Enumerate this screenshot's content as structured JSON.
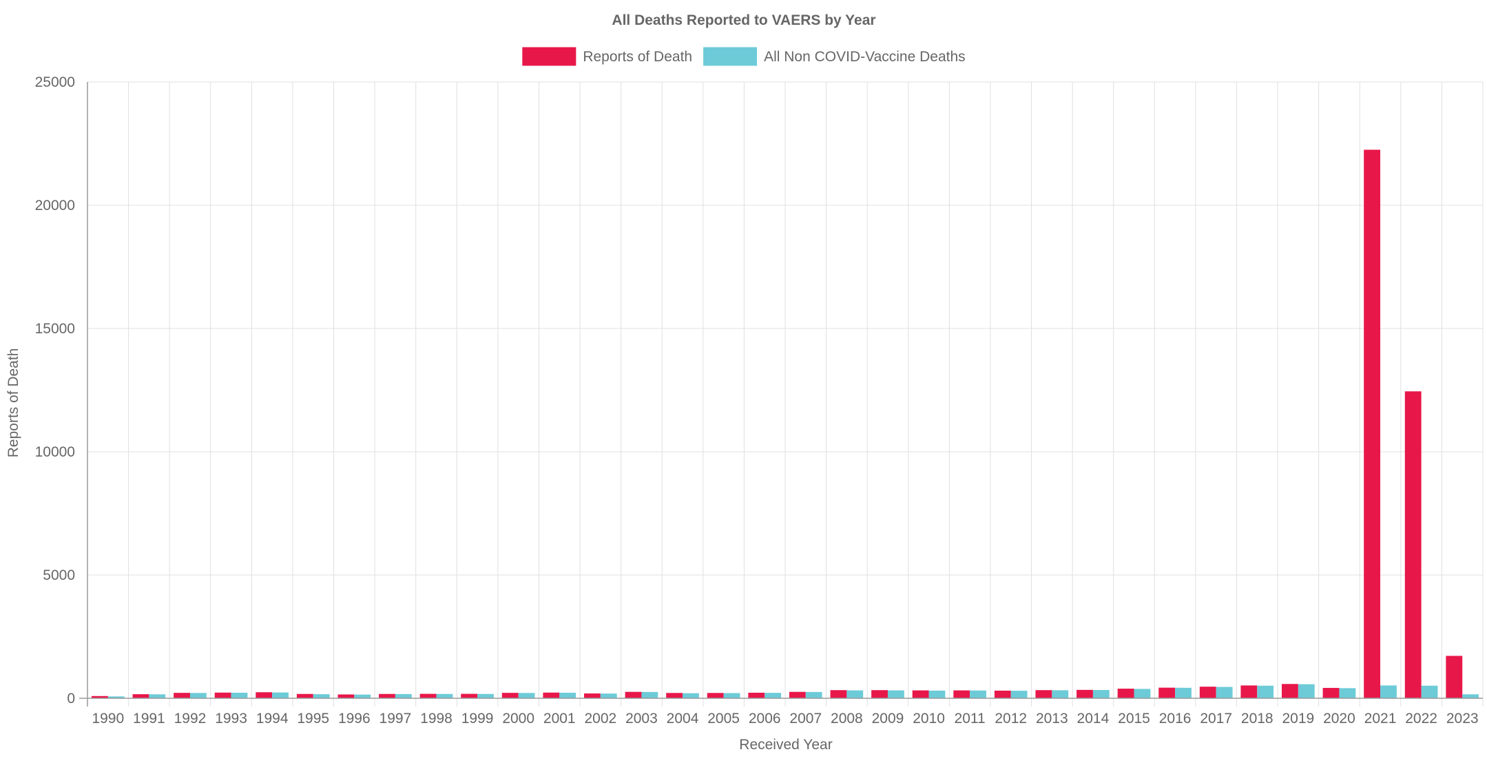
{
  "chart_data": {
    "type": "bar",
    "title": "All Deaths Reported to VAERS by Year",
    "xlabel": "Received Year",
    "ylabel": "Reports of Death",
    "ylim": [
      0,
      25000
    ],
    "yticks": [
      "0",
      "5000",
      "10000",
      "15000",
      "20000",
      "25000"
    ],
    "grid": true,
    "legend_position": "top-center",
    "categories": [
      "1990",
      "1991",
      "1992",
      "1993",
      "1994",
      "1995",
      "1996",
      "1997",
      "1998",
      "1999",
      "2000",
      "2001",
      "2002",
      "2003",
      "2004",
      "2005",
      "2006",
      "2007",
      "2008",
      "2009",
      "2010",
      "2011",
      "2012",
      "2013",
      "2014",
      "2015",
      "2016",
      "2017",
      "2018",
      "2019",
      "2020",
      "2021",
      "2022",
      "2023"
    ],
    "series": [
      {
        "name": "Reports of Death",
        "color": "#e8174a",
        "values": [
          90,
          165,
          220,
          230,
          245,
          175,
          155,
          175,
          180,
          180,
          220,
          230,
          195,
          260,
          215,
          215,
          225,
          260,
          330,
          330,
          320,
          320,
          310,
          330,
          340,
          390,
          430,
          470,
          520,
          580,
          420,
          22250,
          12450,
          1720
        ]
      },
      {
        "name": "All Non COVID-Vaccine Deaths",
        "color": "#6dcbd8",
        "values": [
          75,
          160,
          215,
          225,
          235,
          165,
          150,
          170,
          175,
          175,
          215,
          225,
          190,
          255,
          205,
          210,
          220,
          255,
          320,
          320,
          310,
          315,
          305,
          325,
          335,
          380,
          425,
          460,
          510,
          570,
          410,
          520,
          510,
          160
        ]
      }
    ]
  }
}
